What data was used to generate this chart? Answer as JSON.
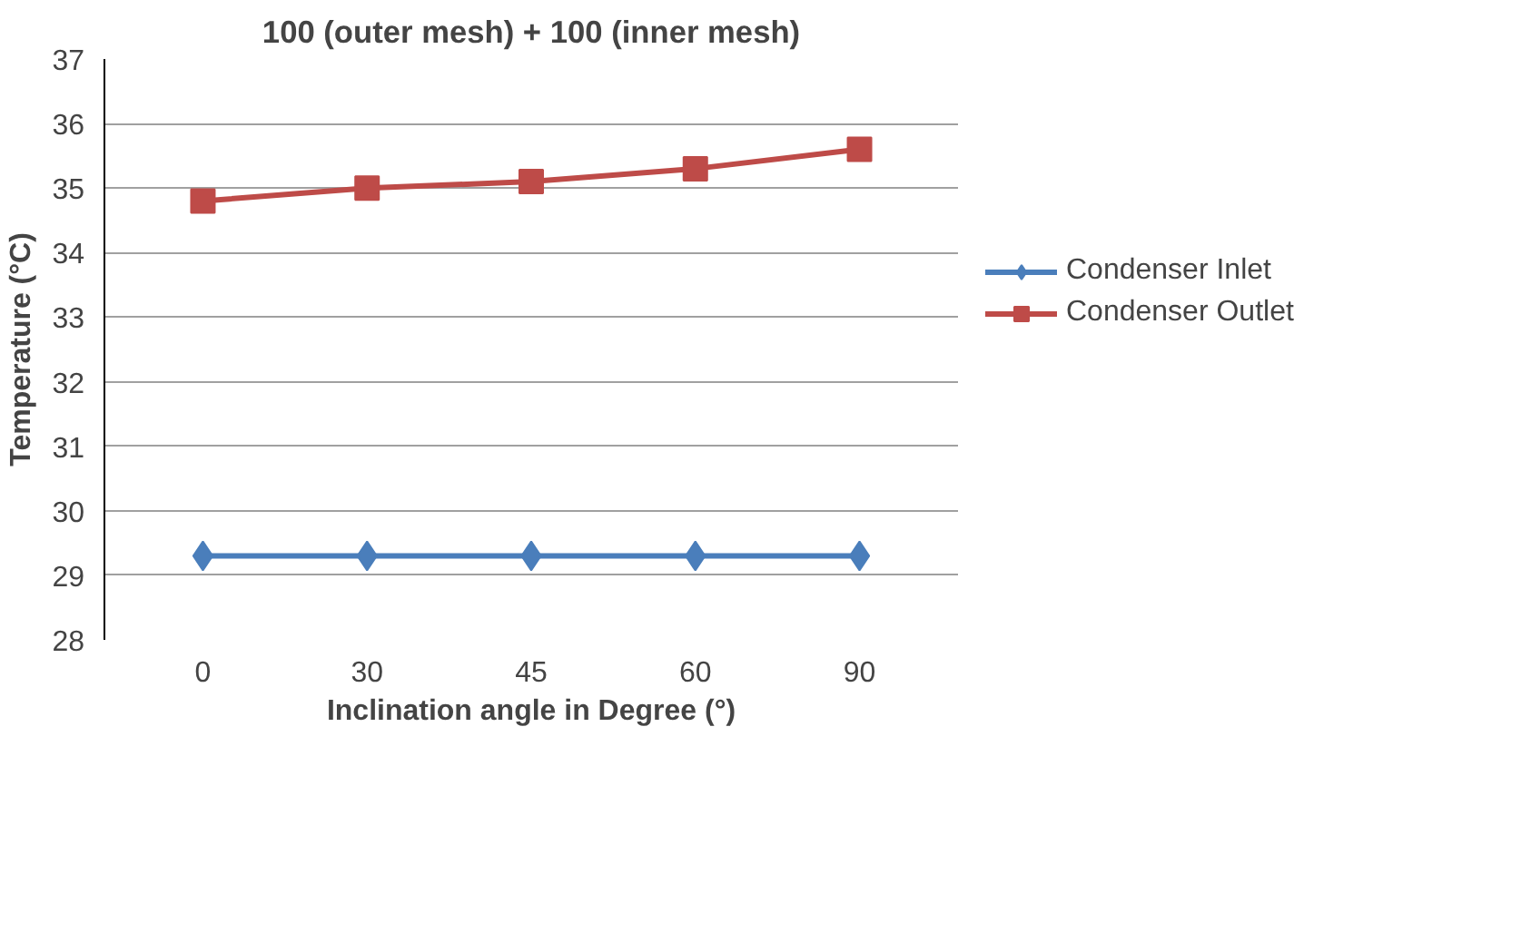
{
  "chart_data": {
    "type": "line",
    "title": "100 (outer mesh) + 100 (inner mesh)",
    "xlabel": "Inclination angle in Degree (°)",
    "ylabel": "Temperature (°C)",
    "categories": [
      "0",
      "30",
      "45",
      "60",
      "90"
    ],
    "series": [
      {
        "name": "Condenser Inlet",
        "color": "#4a7ebb",
        "marker": "diamond",
        "values": [
          29.3,
          29.3,
          29.3,
          29.3,
          29.3
        ]
      },
      {
        "name": "Condenser Outlet",
        "color": "#be4b48",
        "marker": "square",
        "values": [
          34.8,
          35.0,
          35.1,
          35.3,
          35.6
        ]
      }
    ],
    "ylim": [
      28,
      37
    ],
    "yticks": [
      28,
      29,
      30,
      31,
      32,
      33,
      34,
      35,
      36,
      37
    ],
    "grid": "y",
    "legend": "right",
    "line_style": "solid"
  }
}
